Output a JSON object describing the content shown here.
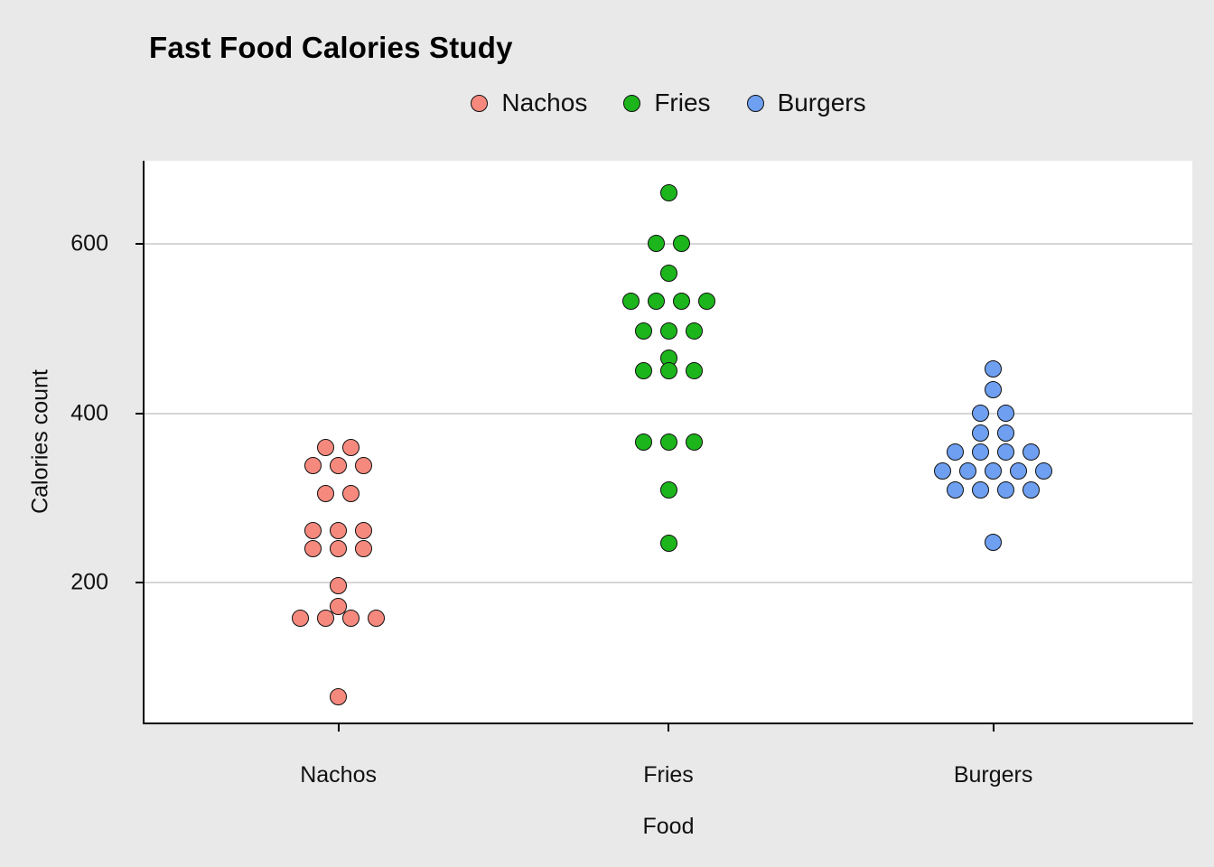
{
  "chart_data": {
    "type": "scatter",
    "subtype": "stacked-dotplot",
    "title": "Fast Food Calories Study",
    "xlabel": "Food",
    "ylabel": "Calories count",
    "categories": [
      "Nachos",
      "Fries",
      "Burgers"
    ],
    "yticks": [
      200,
      400,
      600
    ],
    "ylim": [
      35,
      698
    ],
    "grid": "horizontal-major-only",
    "legend_position": "top-center",
    "panel_background": "#FFFFFF",
    "outer_background": "#E9E9E9",
    "gridline_color": "#D6D6D6",
    "legend": [
      {
        "label": "Nachos",
        "color": "#F6897E"
      },
      {
        "label": "Fries",
        "color": "#1CB51C"
      },
      {
        "label": "Burgers",
        "color": "#6E9FF0"
      }
    ],
    "series": [
      {
        "name": "Nachos",
        "color": "#F6897E",
        "points": [
          [
            -14,
            360
          ],
          [
            14,
            360
          ],
          [
            -28,
            338
          ],
          [
            0,
            338
          ],
          [
            28,
            338
          ],
          [
            -14,
            305
          ],
          [
            14,
            305
          ],
          [
            -28,
            262
          ],
          [
            0,
            262
          ],
          [
            28,
            262
          ],
          [
            -28,
            240
          ],
          [
            0,
            240
          ],
          [
            28,
            240
          ],
          [
            0,
            196
          ],
          [
            0,
            172
          ],
          [
            -42,
            158
          ],
          [
            -14,
            158
          ],
          [
            14,
            158
          ],
          [
            42,
            158
          ],
          [
            0,
            65
          ]
        ]
      },
      {
        "name": "Fries",
        "color": "#1CB51C",
        "points": [
          [
            0,
            660
          ],
          [
            -14,
            600
          ],
          [
            14,
            600
          ],
          [
            0,
            565
          ],
          [
            -42,
            532
          ],
          [
            -14,
            532
          ],
          [
            14,
            532
          ],
          [
            42,
            532
          ],
          [
            -28,
            497
          ],
          [
            0,
            497
          ],
          [
            28,
            497
          ],
          [
            0,
            465
          ],
          [
            -28,
            450
          ],
          [
            0,
            450
          ],
          [
            28,
            450
          ],
          [
            -28,
            366
          ],
          [
            0,
            366
          ],
          [
            28,
            366
          ],
          [
            0,
            310
          ],
          [
            0,
            247
          ]
        ]
      },
      {
        "name": "Burgers",
        "color": "#6E9FF0",
        "points": [
          [
            0,
            452
          ],
          [
            0,
            428
          ],
          [
            -14,
            400
          ],
          [
            14,
            400
          ],
          [
            -14,
            377
          ],
          [
            14,
            377
          ],
          [
            -42,
            354
          ],
          [
            -14,
            354
          ],
          [
            14,
            354
          ],
          [
            42,
            354
          ],
          [
            -56,
            332
          ],
          [
            -28,
            332
          ],
          [
            0,
            332
          ],
          [
            28,
            332
          ],
          [
            56,
            332
          ],
          [
            -42,
            310
          ],
          [
            -14,
            310
          ],
          [
            14,
            310
          ],
          [
            42,
            310
          ],
          [
            0,
            248
          ]
        ]
      }
    ]
  }
}
